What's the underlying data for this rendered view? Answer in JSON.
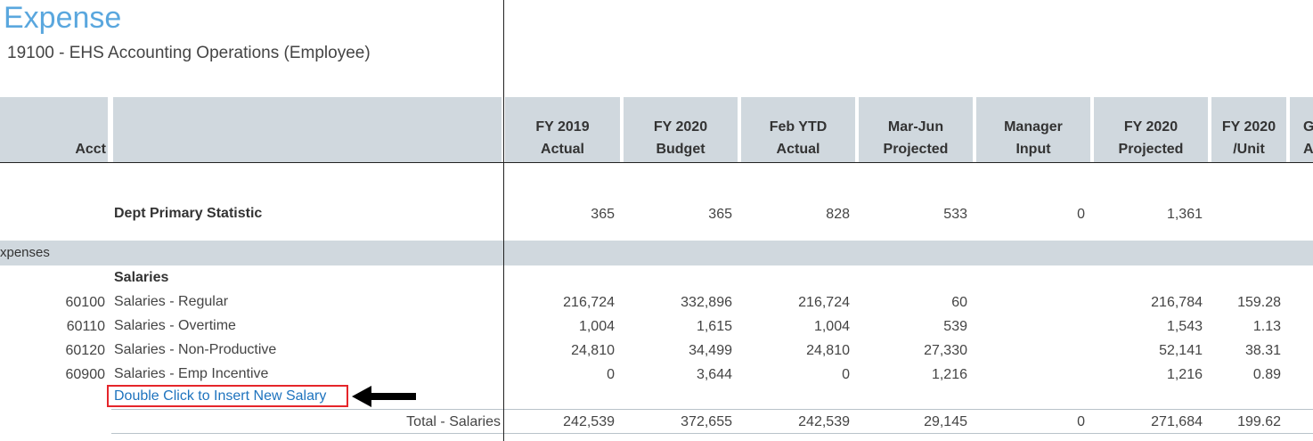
{
  "page": {
    "title": "Expense",
    "subtitle": "19100 - EHS Accounting Operations (Employee)"
  },
  "header": {
    "acct_label": "Acct",
    "columns": [
      {
        "line1": "FY 2019",
        "line2": "Actual"
      },
      {
        "line1": "FY 2020",
        "line2": "Budget"
      },
      {
        "line1": "Feb YTD",
        "line2": "Actual"
      },
      {
        "line1": "Mar-Jun",
        "line2": "Projected"
      },
      {
        "line1": "Manager",
        "line2": "Input"
      },
      {
        "line1": "FY 2020",
        "line2": "Projected"
      },
      {
        "line1": "FY 2020",
        "line2": "/Unit"
      },
      {
        "line1": "G",
        "line2": "A"
      }
    ]
  },
  "stat_row": {
    "label": "Dept Primary Statistic",
    "values": [
      "365",
      "365",
      "828",
      "533",
      "0",
      "1,361",
      ""
    ]
  },
  "band": {
    "label": "xpenses"
  },
  "section": {
    "label": "Salaries"
  },
  "rows": [
    {
      "acct": "60100",
      "desc": "Salaries - Regular",
      "values": [
        "216,724",
        "332,896",
        "216,724",
        "60",
        "",
        "216,784",
        "159.28"
      ]
    },
    {
      "acct": "60110",
      "desc": "Salaries - Overtime",
      "values": [
        "1,004",
        "1,615",
        "1,004",
        "539",
        "",
        "1,543",
        "1.13"
      ]
    },
    {
      "acct": "60120",
      "desc": "Salaries - Non-Productive",
      "values": [
        "24,810",
        "34,499",
        "24,810",
        "27,330",
        "",
        "52,141",
        "38.31"
      ]
    },
    {
      "acct": "60900",
      "desc": "Salaries - Emp Incentive",
      "values": [
        "0",
        "3,644",
        "0",
        "1,216",
        "",
        "1,216",
        "0.89"
      ]
    }
  ],
  "insert_link": {
    "label": "Double Click to Insert New Salary"
  },
  "total": {
    "label": "Total - Salaries",
    "values": [
      "242,539",
      "372,655",
      "242,539",
      "29,145",
      "0",
      "271,684",
      "199.62"
    ]
  }
}
